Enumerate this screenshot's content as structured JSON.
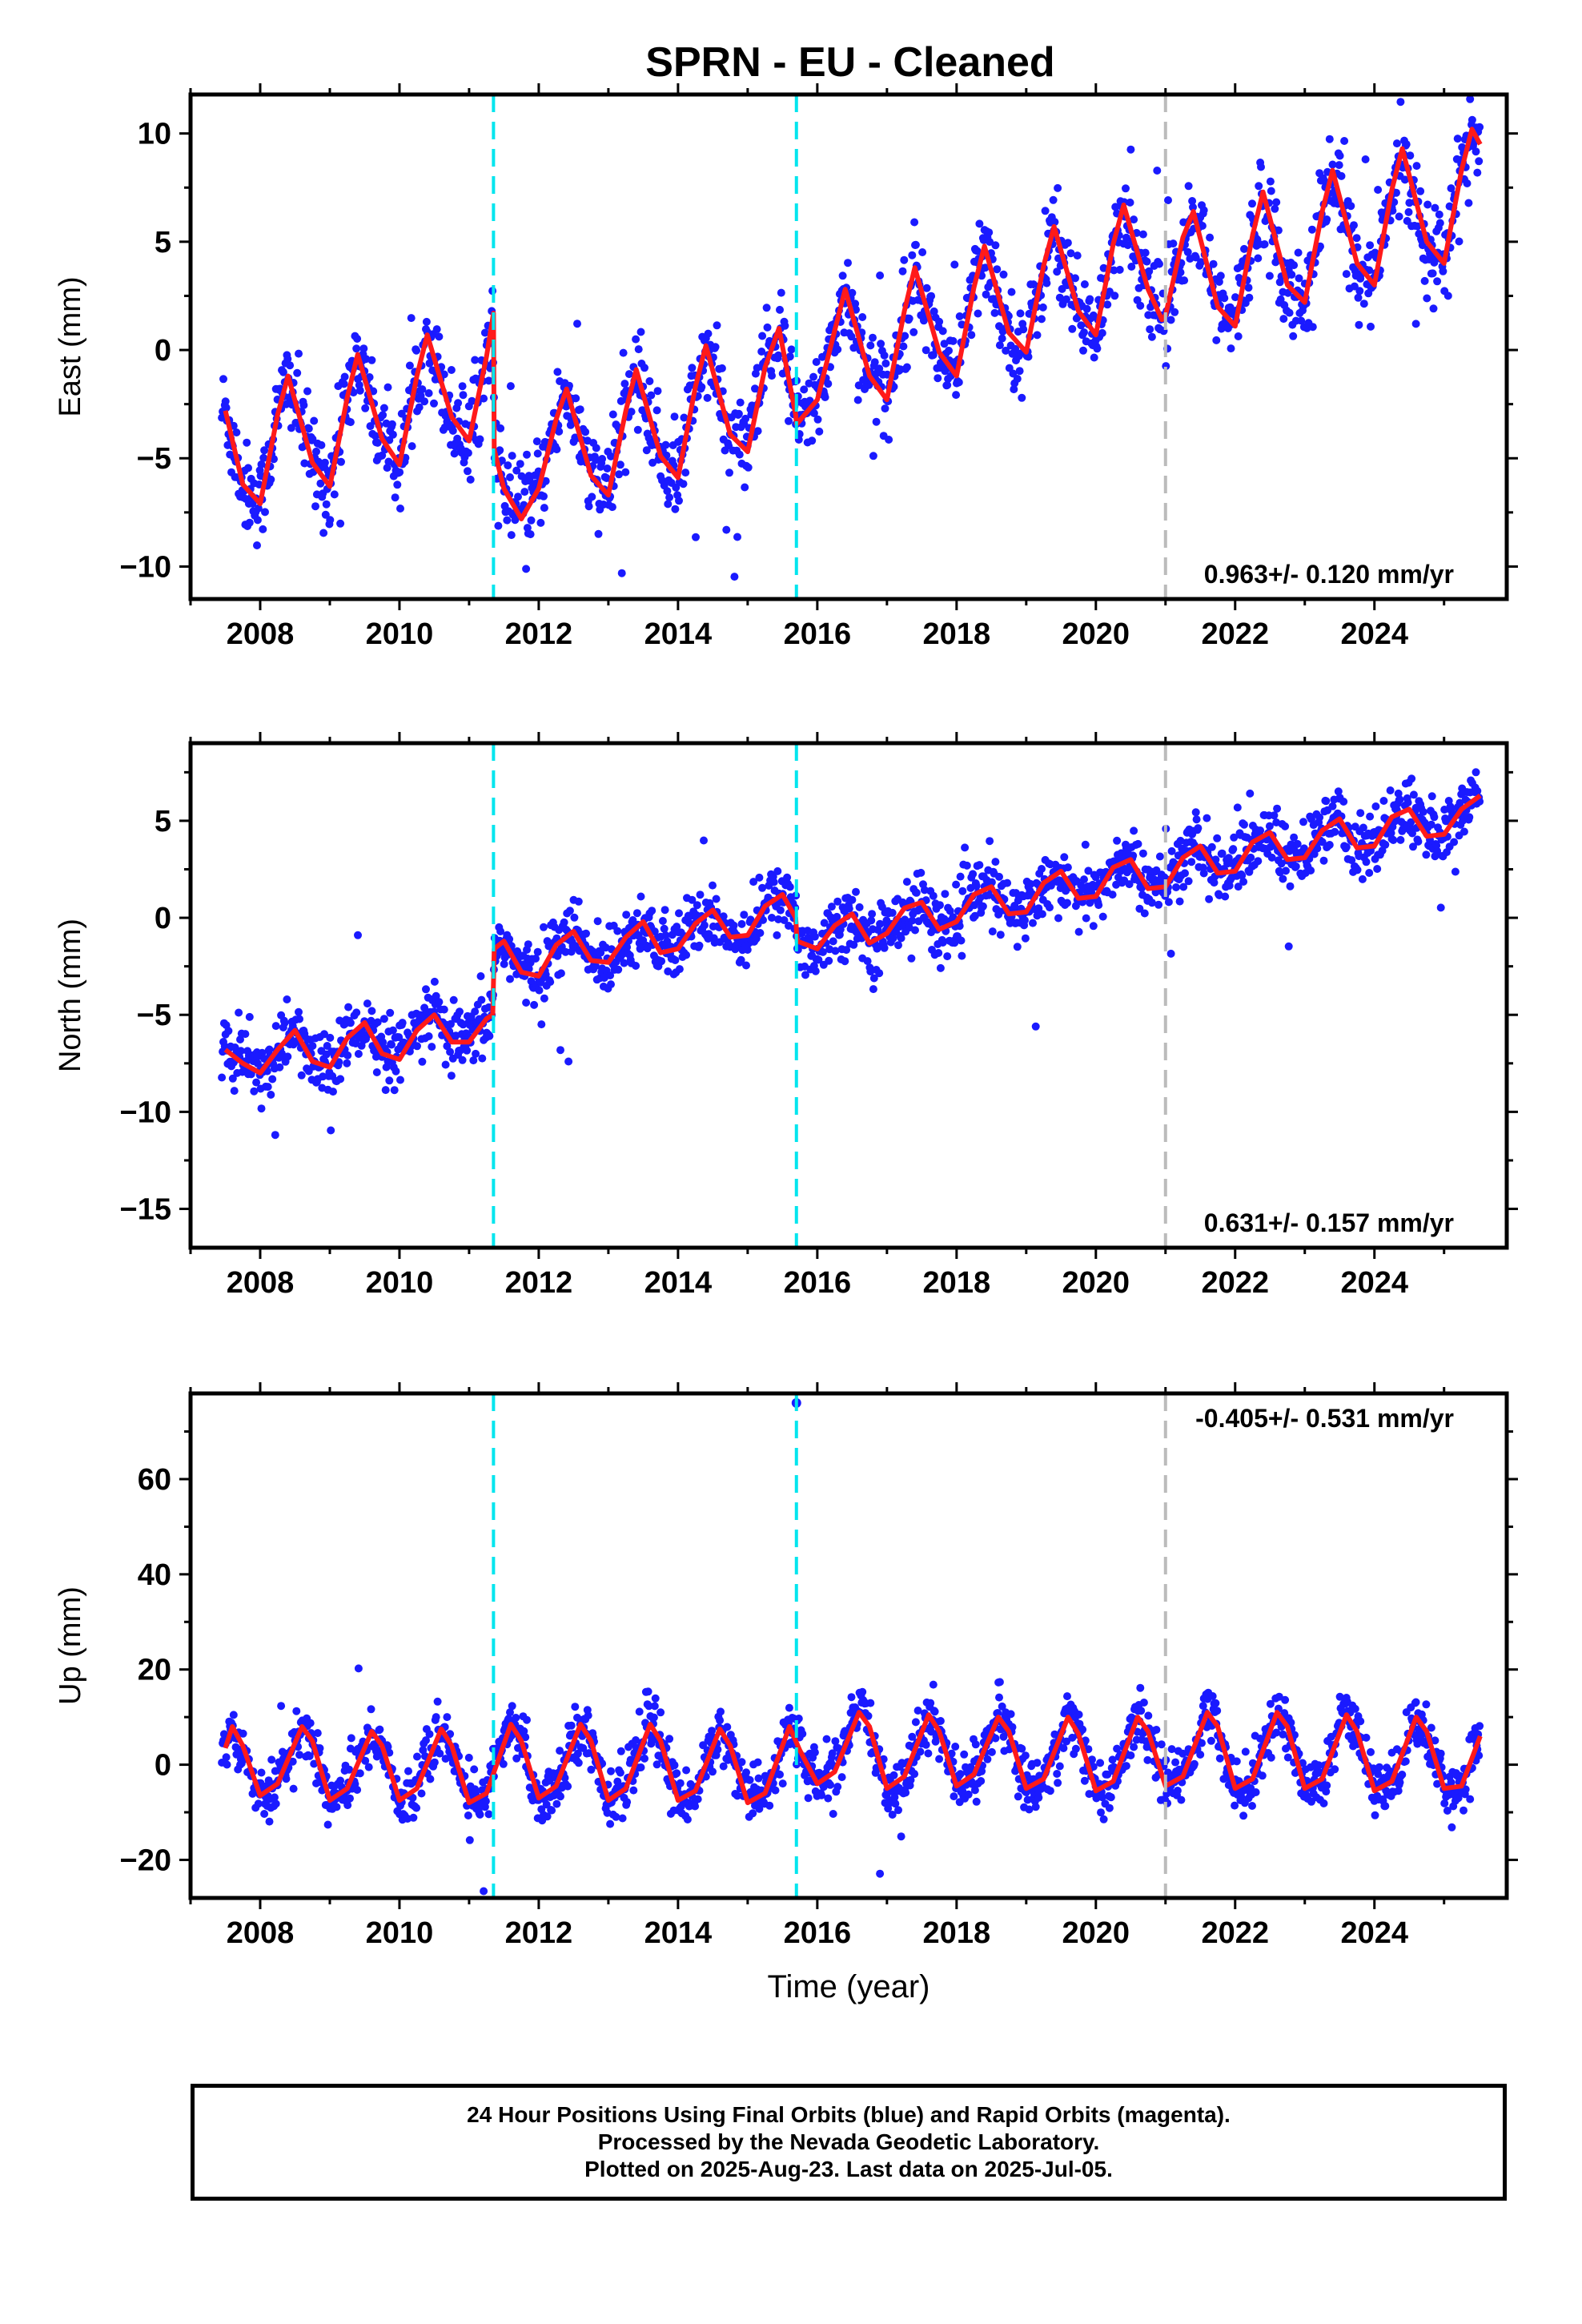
{
  "title": "SPRN  - EU - Cleaned",
  "colors": {
    "points": "#1a1aff",
    "model": "#ff1a1a",
    "event_dashed": "#00e5ee",
    "event_gray": "#bbbbbb",
    "frame": "#000000"
  },
  "chart_data": [
    {
      "type": "scatter",
      "ylabel": "East (mm)",
      "xlabel": "",
      "xlim": [
        2007.0,
        2025.9
      ],
      "ylim": [
        -11.5,
        11.8
      ],
      "xticks": [
        2008,
        2010,
        2012,
        2014,
        2016,
        2018,
        2020,
        2022,
        2024
      ],
      "yticks": [
        -10,
        -5,
        0,
        5,
        10
      ],
      "rate_label": "0.963+/- 0.120 mm/yr",
      "vlines_cyan": [
        2011.35,
        2015.7
      ],
      "vlines_gray": [
        2021.0
      ],
      "series": [
        {
          "kind": "model",
          "x": [
            2007.5,
            2007.75,
            2008.0,
            2008.25,
            2008.4,
            2008.75,
            2009.0,
            2009.25,
            2009.4,
            2009.75,
            2010.0,
            2010.25,
            2010.4,
            2010.75,
            2011.0,
            2011.25,
            2011.35,
            2011.36,
            2011.5,
            2011.75,
            2012.0,
            2012.25,
            2012.4,
            2012.75,
            2013.0,
            2013.25,
            2013.4,
            2013.75,
            2014.0,
            2014.25,
            2014.4,
            2014.75,
            2015.0,
            2015.25,
            2015.45,
            2015.69,
            2015.7,
            2015.71,
            2016.0,
            2016.25,
            2016.4,
            2016.75,
            2017.0,
            2017.25,
            2017.4,
            2017.75,
            2018.0,
            2018.25,
            2018.4,
            2018.75,
            2019.0,
            2019.25,
            2019.4,
            2019.75,
            2020.0,
            2020.25,
            2020.4,
            2020.75,
            2020.95,
            2021.0,
            2021.25,
            2021.4,
            2021.75,
            2022.0,
            2022.25,
            2022.4,
            2022.75,
            2023.0,
            2023.25,
            2023.4,
            2023.75,
            2024.0,
            2024.25,
            2024.4,
            2024.75,
            2025.0,
            2025.25,
            2025.4,
            2025.52
          ],
          "y": [
            -2.8,
            -6.2,
            -7.1,
            -3.0,
            -1.2,
            -5.2,
            -6.3,
            -2.2,
            -0.2,
            -4.1,
            -5.3,
            -1.2,
            0.7,
            -3.1,
            -4.2,
            -0.3,
            1.7,
            -4.6,
            -6.4,
            -7.8,
            -6.4,
            -3.2,
            -1.8,
            -5.8,
            -6.7,
            -2.8,
            -0.9,
            -4.9,
            -5.9,
            -1.7,
            0.2,
            -3.9,
            -4.7,
            -0.8,
            1.0,
            -3.0,
            -3.4,
            -3.4,
            -2.3,
            0.9,
            2.8,
            -1.2,
            -2.3,
            1.8,
            3.8,
            -0.1,
            -1.2,
            2.9,
            4.8,
            0.8,
            -0.1,
            3.9,
            5.7,
            1.8,
            0.7,
            4.9,
            6.7,
            2.8,
            1.4,
            1.6,
            5.2,
            6.4,
            2.0,
            1.1,
            5.3,
            7.3,
            3.0,
            2.2,
            6.4,
            8.3,
            4.0,
            3.0,
            7.4,
            9.3,
            5.0,
            4.0,
            8.3,
            10.2,
            9.5
          ],
          "amp": 2.3,
          "trend": [
            0.963,
            -3.9
          ],
          "step": 4.5,
          "noise": 1.4
        }
      ]
    },
    {
      "type": "scatter",
      "ylabel": "North (mm)",
      "xlabel": "",
      "xlim": [
        2007.0,
        2025.9
      ],
      "ylim": [
        -17.0,
        9.0
      ],
      "xticks": [
        2008,
        2010,
        2012,
        2014,
        2016,
        2018,
        2020,
        2022,
        2024
      ],
      "yticks": [
        -15,
        -10,
        -5,
        0,
        5
      ],
      "rate_label": "0.631+/- 0.157 mm/yr",
      "vlines_cyan": [
        2011.35,
        2015.7
      ],
      "vlines_gray": [
        2021.0
      ],
      "series": [
        {
          "kind": "model",
          "x": [
            2007.5,
            2007.75,
            2008.0,
            2008.25,
            2008.5,
            2008.75,
            2009.0,
            2009.25,
            2009.5,
            2009.75,
            2010.0,
            2010.25,
            2010.5,
            2010.75,
            2011.0,
            2011.25,
            2011.34,
            2011.36,
            2011.5,
            2011.75,
            2012.0,
            2012.25,
            2012.5,
            2012.75,
            2013.0,
            2013.25,
            2013.5,
            2013.75,
            2014.0,
            2014.25,
            2014.5,
            2014.75,
            2015.0,
            2015.25,
            2015.5,
            2015.69,
            2015.71,
            2016.0,
            2016.25,
            2016.5,
            2016.75,
            2017.0,
            2017.25,
            2017.5,
            2017.75,
            2018.0,
            2018.25,
            2018.5,
            2018.75,
            2019.0,
            2019.25,
            2019.5,
            2019.75,
            2020.0,
            2020.25,
            2020.5,
            2020.75,
            2021.0,
            2021.25,
            2021.5,
            2021.75,
            2022.0,
            2022.25,
            2022.5,
            2022.75,
            2023.0,
            2023.25,
            2023.5,
            2023.75,
            2024.0,
            2024.25,
            2024.5,
            2024.75,
            2025.0,
            2025.25,
            2025.52
          ],
          "y": [
            -6.8,
            -7.5,
            -8.0,
            -6.8,
            -5.8,
            -7.4,
            -7.7,
            -6.2,
            -5.4,
            -7.0,
            -7.3,
            -5.8,
            -5.0,
            -6.4,
            -6.4,
            -5.2,
            -5.0,
            -1.6,
            -1.2,
            -2.8,
            -3.0,
            -1.4,
            -0.7,
            -2.2,
            -2.3,
            -1.0,
            -0.2,
            -1.8,
            -1.6,
            -0.3,
            0.4,
            -1.0,
            -0.9,
            0.6,
            1.2,
            0.0,
            -1.2,
            -1.6,
            -0.4,
            0.2,
            -1.3,
            -0.8,
            0.5,
            0.8,
            -0.6,
            -0.2,
            1.2,
            1.6,
            0.2,
            0.3,
            1.8,
            2.4,
            1.0,
            1.1,
            2.6,
            3.0,
            1.5,
            1.6,
            3.1,
            3.7,
            2.3,
            2.4,
            3.9,
            4.4,
            3.0,
            3.1,
            4.5,
            5.1,
            3.6,
            3.7,
            5.2,
            5.6,
            4.2,
            4.3,
            5.6,
            6.3
          ],
          "amp": 0.9,
          "trend": [
            0.631,
            -6.7
          ],
          "step": 4.3,
          "noise": 1.1
        }
      ]
    },
    {
      "type": "scatter",
      "ylabel": "Up (mm)",
      "xlabel": "Time (year)",
      "xlim": [
        2007.0,
        2025.9
      ],
      "ylim": [
        -28.0,
        78.0
      ],
      "xticks": [
        2008,
        2010,
        2012,
        2014,
        2016,
        2018,
        2020,
        2022,
        2024
      ],
      "yticks": [
        -20,
        0,
        20,
        40,
        60
      ],
      "rate_label": "-0.405+/- 0.531 mm/yr",
      "vlines_cyan": [
        2011.35,
        2015.7
      ],
      "vlines_gray": [
        2021.0
      ],
      "outlier": [
        2015.7,
        76.0
      ],
      "series": [
        {
          "kind": "model",
          "x": [
            2007.5,
            2007.6,
            2007.75,
            2008.0,
            2008.25,
            2008.6,
            2008.75,
            2009.0,
            2009.25,
            2009.6,
            2009.75,
            2010.0,
            2010.25,
            2010.6,
            2010.75,
            2011.0,
            2011.25,
            2011.6,
            2011.75,
            2012.0,
            2012.25,
            2012.6,
            2012.75,
            2013.0,
            2013.25,
            2013.6,
            2013.75,
            2014.0,
            2014.25,
            2014.6,
            2014.75,
            2015.0,
            2015.25,
            2015.6,
            2015.75,
            2016.0,
            2016.25,
            2016.6,
            2016.75,
            2017.0,
            2017.25,
            2017.6,
            2017.75,
            2018.0,
            2018.25,
            2018.6,
            2018.75,
            2019.0,
            2019.25,
            2019.6,
            2019.75,
            2020.0,
            2020.25,
            2020.6,
            2020.75,
            2021.0,
            2021.25,
            2021.6,
            2021.75,
            2022.0,
            2022.25,
            2022.6,
            2022.75,
            2023.0,
            2023.25,
            2023.6,
            2023.75,
            2024.0,
            2024.25,
            2024.6,
            2024.75,
            2025.0,
            2025.25,
            2025.52
          ],
          "y": [
            3.5,
            8.0,
            4.0,
            -6.5,
            -4.0,
            8.0,
            5.0,
            -7.5,
            -5.0,
            7.0,
            4.0,
            -7.5,
            -5.0,
            7.5,
            4.0,
            -8.0,
            -6.0,
            8.5,
            5.0,
            -7.0,
            -4.5,
            8.5,
            5.0,
            -7.5,
            -5.0,
            8.5,
            5.0,
            -7.5,
            -5.5,
            7.5,
            4.0,
            -8.0,
            -6.0,
            8.0,
            3.0,
            -4.0,
            -1.5,
            11.0,
            8.0,
            -5.0,
            -2.5,
            10.5,
            7.0,
            -4.5,
            -2.0,
            10.0,
            7.0,
            -5.0,
            -3.0,
            10.0,
            6.5,
            -5.5,
            -3.5,
            10.0,
            7.0,
            -4.5,
            -2.5,
            11.0,
            8.0,
            -5.0,
            -3.0,
            11.0,
            8.0,
            -5.0,
            -3.0,
            10.5,
            7.0,
            -5.5,
            -3.5,
            10.0,
            7.0,
            -5.0,
            -4.5,
            6.0
          ],
          "amp": 8.0,
          "trend": [
            -0.05,
            0.5
          ],
          "step": 0,
          "noise": 3.8
        }
      ]
    }
  ],
  "footer": {
    "line1": "24 Hour Positions Using Final Orbits (blue) and Rapid Orbits (magenta).",
    "line2": "Processed by the Nevada Geodetic Laboratory.",
    "line3": "Plotted on 2025-Aug-23. Last data on 2025-Jul-05."
  }
}
